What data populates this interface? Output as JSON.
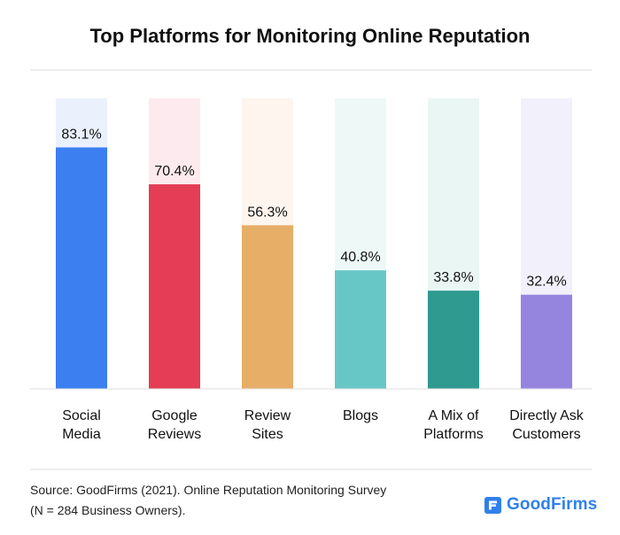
{
  "chart_data": {
    "type": "bar",
    "title": "Top Platforms for Monitoring Online Reputation",
    "categories": [
      [
        "Social",
        "Media"
      ],
      [
        "Google",
        "Reviews"
      ],
      [
        "Review",
        "Sites"
      ],
      [
        "Blogs"
      ],
      [
        "A Mix of",
        "Platforms"
      ],
      [
        "Directly Ask",
        "Customers"
      ]
    ],
    "values": [
      83.1,
      70.4,
      56.3,
      40.8,
      33.8,
      32.4
    ],
    "value_labels": [
      "83.1%",
      "70.4%",
      "56.3%",
      "40.8%",
      "33.8%",
      "32.4%"
    ],
    "unit": "%",
    "ylim": [
      0,
      100
    ],
    "bar_colors": [
      "#3b7ff0",
      "#e43d55",
      "#e6ae67",
      "#67c7c7",
      "#2e9a90",
      "#9585df"
    ],
    "track_colors": [
      "#eaf1fd",
      "#fdeaee",
      "#fdf5ee",
      "#eef8f7",
      "#eaf6f4",
      "#f2f0fb"
    ],
    "grid": false,
    "legend": "none"
  },
  "footer": {
    "source_line1": "Source: GoodFirms (2021). Online Reputation Monitoring Survey",
    "source_line2": "(N = 284 Business Owners).",
    "logo_text": "GoodFirms",
    "logo_icon": "goodfirms-logo-icon",
    "logo_color": "#2f80ed"
  }
}
